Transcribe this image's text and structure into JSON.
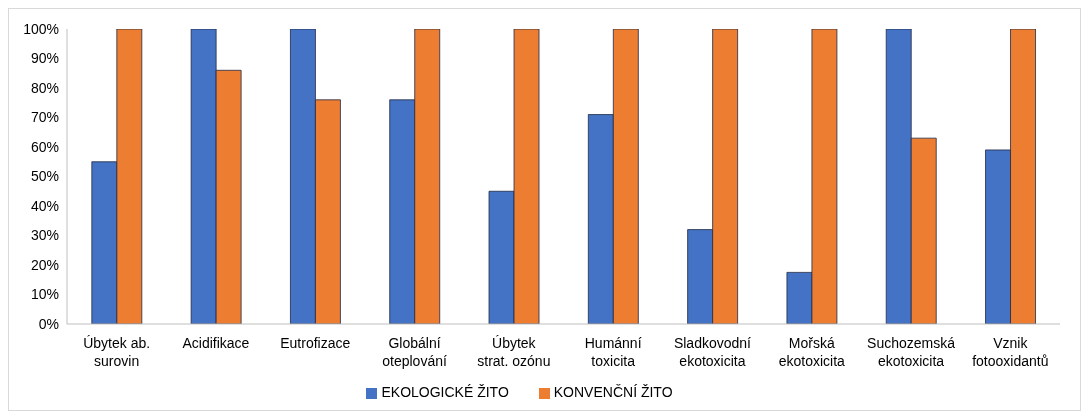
{
  "chart_data": {
    "type": "bar",
    "categories": [
      "Úbytek ab. surovin",
      "Acidifikace",
      "Eutrofizace",
      "Globální oteplování",
      "Úbytek strat. ozónu",
      "Humánní toxicita",
      "Sladkovodní ekotoxicita",
      "Mořská ekotoxicita",
      "Suchozemská ekotoxicita",
      "Vznik fotooxidantů"
    ],
    "series": [
      {
        "name": "EKOLOGICKÉ ŽITO",
        "color": "#4472c4",
        "values": [
          55,
          100,
          100,
          76,
          45,
          71,
          32,
          17.5,
          100,
          59
        ]
      },
      {
        "name": "KONVENČNÍ ŽITO",
        "color": "#ed7d31",
        "values": [
          100,
          86,
          76,
          100,
          100,
          100,
          100,
          100,
          63,
          100
        ]
      }
    ],
    "ylim": [
      0,
      100
    ],
    "yticks": [
      {
        "value": 0,
        "label": "0%"
      },
      {
        "value": 10,
        "label": "10%"
      },
      {
        "value": 20,
        "label": "20%"
      },
      {
        "value": 30,
        "label": "30%"
      },
      {
        "value": 40,
        "label": "40%"
      },
      {
        "value": 50,
        "label": "50%"
      },
      {
        "value": 60,
        "label": "60%"
      },
      {
        "value": 70,
        "label": "70%"
      },
      {
        "value": 80,
        "label": "80%"
      },
      {
        "value": 90,
        "label": "90%"
      },
      {
        "value": 100,
        "label": "100%"
      }
    ],
    "grid": false,
    "legend": "bottom"
  }
}
